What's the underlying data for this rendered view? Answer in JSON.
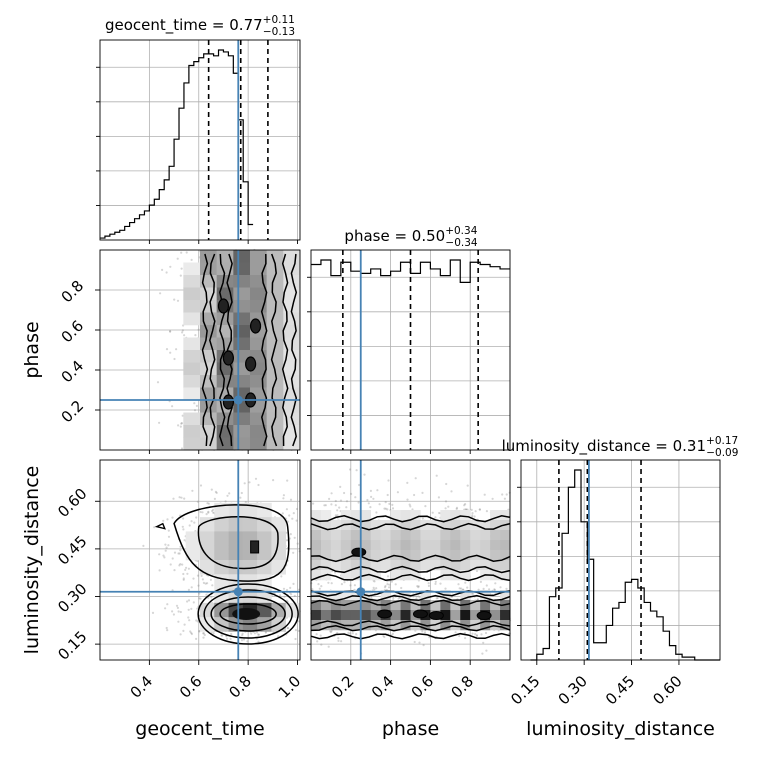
{
  "chart_data": {
    "type": "corner",
    "parameters": [
      "geocent_time",
      "phase",
      "luminosity_distance"
    ],
    "axis_labels": [
      "geocent_time",
      "phase",
      "luminosity_distance"
    ],
    "ranges": [
      [
        0.2,
        1.01
      ],
      [
        0.0,
        1.0
      ],
      [
        0.1,
        0.73
      ]
    ],
    "ticks": [
      [
        0.4,
        0.6,
        0.8,
        1.0
      ],
      [
        0.2,
        0.4,
        0.6,
        0.8
      ],
      [
        0.15,
        0.3,
        0.45,
        0.6
      ]
    ],
    "tick_labels": [
      [
        "0.4",
        "0.6",
        "0.8",
        "1.0"
      ],
      [
        "0.2",
        "0.4",
        "0.6",
        "0.8"
      ],
      [
        "0.15",
        "0.30",
        "0.45",
        "0.60"
      ]
    ],
    "truths": [
      0.76,
      0.25,
      0.315
    ],
    "truth_color": "#4682b4",
    "line_color": "#000000",
    "titles": [
      {
        "label": "geocent_time",
        "value": "0.77",
        "plus": "+0.11",
        "minus": "−0.13",
        "quantiles": [
          0.64,
          0.77,
          0.88
        ]
      },
      {
        "label": "phase",
        "value": "0.50",
        "plus": "+0.34",
        "minus": "−0.34",
        "quantiles": [
          0.16,
          0.5,
          0.84
        ]
      },
      {
        "label": "luminosity_distance",
        "value": "0.31",
        "plus": "+0.17",
        "minus": "−0.09",
        "quantiles": [
          0.22,
          0.31,
          0.48
        ]
      }
    ],
    "histograms": [
      {
        "edges_start": 0.2,
        "edge_step": 0.02,
        "counts": [
          1,
          2,
          3,
          4,
          5,
          7,
          9,
          11,
          13,
          15,
          18,
          21,
          26,
          31,
          38,
          52,
          68,
          81,
          90,
          92,
          94,
          96,
          96,
          95,
          98,
          97,
          95,
          86,
          62,
          30,
          8
        ]
      },
      {
        "edges_start": 0.0,
        "edge_step": 0.05,
        "counts": [
          83,
          85,
          78,
          84,
          80,
          79,
          81,
          78,
          80,
          84,
          79,
          84,
          81,
          78,
          85,
          75,
          84,
          83,
          82,
          81
        ]
      },
      {
        "edges_start": 0.13,
        "edge_step": 0.02,
        "counts": [
          0,
          2,
          4,
          22,
          25,
          44,
          60,
          66,
          48,
          35,
          6,
          6,
          12,
          18,
          20,
          27,
          28,
          25,
          20,
          17,
          15,
          10,
          5,
          2,
          1,
          1,
          0,
          0,
          0,
          0
        ]
      }
    ],
    "joint_2d": [
      {
        "x": "geocent_time",
        "y": "phase",
        "x_band": [
          0.62,
          0.98
        ],
        "y_band": [
          0.0,
          1.0
        ],
        "contours_x": [
          [
            0.62,
            0.98
          ],
          [
            0.65,
            0.95
          ],
          [
            0.69,
            0.9
          ],
          [
            0.72,
            0.86
          ]
        ]
      },
      {
        "x": "geocent_time",
        "y": "luminosity_distance",
        "clusters": [
          {
            "x": 0.8,
            "y": 0.24
          },
          {
            "x": 0.78,
            "y": 0.46
          }
        ]
      },
      {
        "x": "phase",
        "y": "luminosity_distance",
        "bands_y": [
          [
            0.17,
            0.31
          ],
          [
            0.37,
            0.56
          ]
        ]
      }
    ]
  }
}
